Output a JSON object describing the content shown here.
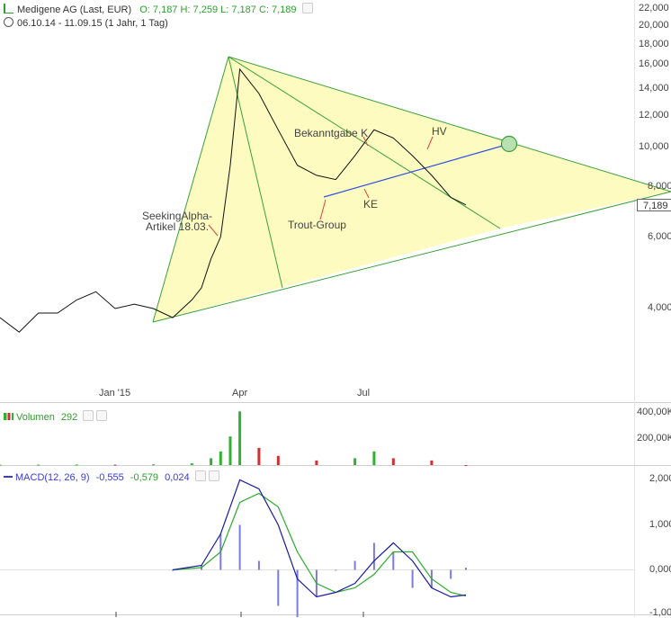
{
  "header": {
    "title": "Medigene AG (Last, EUR)",
    "ohlc": "O: 7,187  H: 7,259  L: 7,187  C: 7,189",
    "range": "06.10.14 - 11.09.15 (1 Jahr, 1 Tag)"
  },
  "volume_header": {
    "label": "Volumen",
    "value": "292"
  },
  "macd_header": {
    "label": "MACD(12, 26, 9)",
    "v1": "-0,555",
    "v2": "-0,579",
    "v3": "0,024"
  },
  "annotations": {
    "seeking_alpha_1": "SeekingAlpha-",
    "seeking_alpha_2": "Artikel 18.03.",
    "bekanntgabe": "Bekanntgabe K",
    "trout": "Trout-Group",
    "ke": "KE",
    "hv": "HV"
  },
  "last_price": "7,189",
  "colors": {
    "price_line": "#111111",
    "fan_fill": "#fdfbc0",
    "fan_lines": "#3aa03a",
    "trendline": "#3050e0",
    "volume_up": "#33b033",
    "volume_down": "#d03030",
    "macd_line": "#1a1aa0",
    "signal_line": "#2eaa2e",
    "histogram": "#7a7ae0"
  },
  "chart_data": [
    {
      "type": "line",
      "title": "Medigene AG (Last, EUR)",
      "yscale": "log",
      "ylim": [
        2.85,
        22.0
      ],
      "x_ticks": [
        "Jan '15",
        "Apr",
        "Jul"
      ],
      "y_ticks": [
        "22,000",
        "20,000",
        "18,000",
        "16,000",
        "14,000",
        "12,000",
        "10,000",
        "8,000",
        "6,000",
        "4,000"
      ],
      "y_tick_values": [
        22,
        20,
        18,
        16,
        14,
        12,
        10,
        8,
        6,
        4
      ],
      "series": [
        {
          "dates": [
            "2014-10-06",
            "2014-10-20",
            "2014-11-03",
            "2014-11-17",
            "2014-12-01",
            "2014-12-15",
            "2014-12-29",
            "2015-01-12",
            "2015-01-26",
            "2015-02-09",
            "2015-02-23",
            "2015-03-02",
            "2015-03-09",
            "2015-03-16",
            "2015-03-23",
            "2015-03-30",
            "2015-04-13",
            "2015-04-27",
            "2015-05-11",
            "2015-05-25",
            "2015-06-08",
            "2015-06-22",
            "2015-07-06",
            "2015-07-20",
            "2015-08-03",
            "2015-08-17",
            "2015-08-31",
            "2015-09-11"
          ],
          "values": [
            3.8,
            3.5,
            3.9,
            3.9,
            4.2,
            4.4,
            4.0,
            4.1,
            4.0,
            3.8,
            4.2,
            4.5,
            5.3,
            6.0,
            9.0,
            15.5,
            13.5,
            11.0,
            9.0,
            8.5,
            8.3,
            9.5,
            11.0,
            10.5,
            9.5,
            8.5,
            7.5,
            7.19
          ]
        }
      ]
    },
    {
      "type": "bar",
      "title": "Volumen",
      "y_ticks": [
        "400,00K",
        "200,00K"
      ],
      "y_tick_values": [
        400000,
        200000
      ],
      "ylim": [
        0,
        480000
      ],
      "series": [
        {
          "dates": [
            "2014-10-06",
            "2014-11-03",
            "2014-12-01",
            "2014-12-29",
            "2015-01-26",
            "2015-02-23",
            "2015-03-09",
            "2015-03-16",
            "2015-03-23",
            "2015-03-30",
            "2015-04-13",
            "2015-04-27",
            "2015-05-25",
            "2015-06-22",
            "2015-07-06",
            "2015-07-20",
            "2015-08-17",
            "2015-09-11"
          ],
          "values": [
            3000,
            4000,
            5000,
            3000,
            6000,
            15000,
            60000,
            120000,
            250000,
            470000,
            150000,
            80000,
            40000,
            60000,
            120000,
            60000,
            40000,
            292
          ]
        }
      ]
    },
    {
      "type": "line",
      "title": "MACD(12, 26, 9)",
      "y_ticks": [
        "2,000",
        "1,000",
        "0,000",
        "-1,000"
      ],
      "y_tick_values": [
        2.0,
        1.0,
        0.0,
        -1.0
      ],
      "ylim": [
        -1.0,
        2.1
      ],
      "series": [
        {
          "name": "MACD",
          "dates": [
            "2015-02-09",
            "2015-03-02",
            "2015-03-16",
            "2015-03-30",
            "2015-04-13",
            "2015-04-27",
            "2015-05-11",
            "2015-05-25",
            "2015-06-08",
            "2015-06-22",
            "2015-07-06",
            "2015-07-20",
            "2015-08-03",
            "2015-08-17",
            "2015-08-31",
            "2015-09-11"
          ],
          "values": [
            0.0,
            0.1,
            0.8,
            2.0,
            1.8,
            1.0,
            -0.2,
            -0.6,
            -0.5,
            -0.3,
            0.2,
            0.6,
            0.2,
            -0.4,
            -0.6,
            -0.555
          ]
        },
        {
          "name": "Signal",
          "dates": [
            "2015-02-09",
            "2015-03-02",
            "2015-03-16",
            "2015-03-30",
            "2015-04-13",
            "2015-04-27",
            "2015-05-11",
            "2015-05-25",
            "2015-06-08",
            "2015-06-22",
            "2015-07-06",
            "2015-07-20",
            "2015-08-03",
            "2015-08-17",
            "2015-08-31",
            "2015-09-11"
          ],
          "values": [
            0.0,
            0.05,
            0.4,
            1.5,
            1.7,
            1.4,
            0.4,
            -0.3,
            -0.5,
            -0.4,
            -0.1,
            0.4,
            0.4,
            -0.2,
            -0.5,
            -0.579
          ]
        }
      ]
    }
  ]
}
